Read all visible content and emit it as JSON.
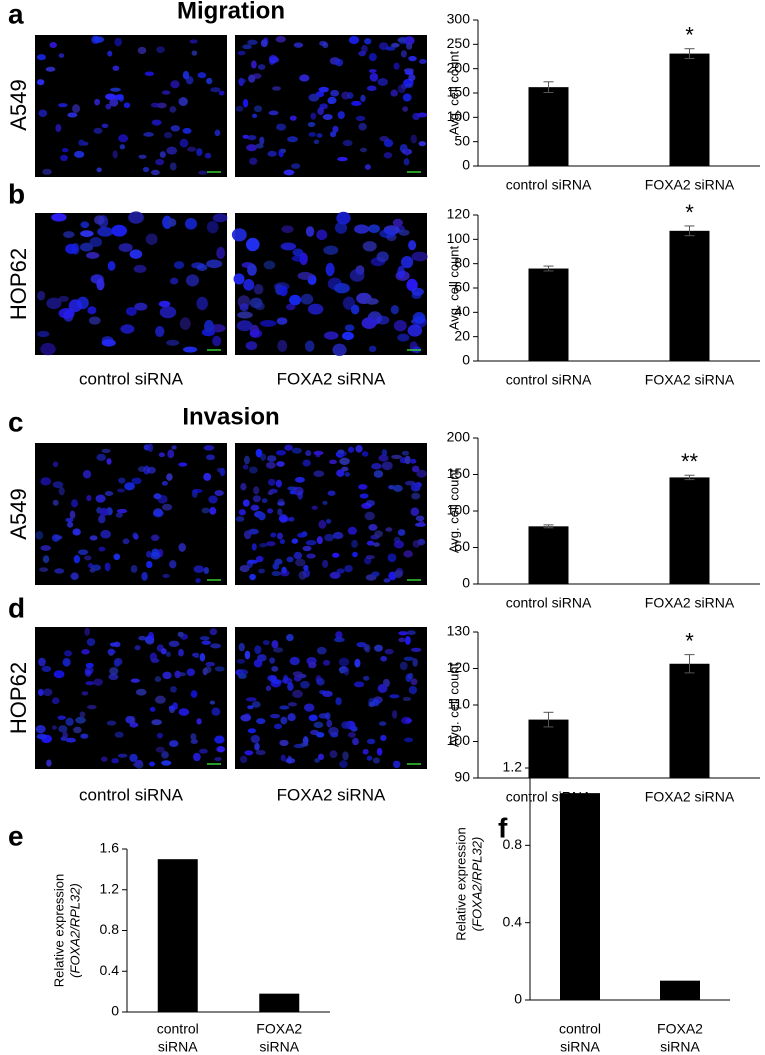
{
  "figure": {
    "panels": [
      "a",
      "b",
      "c",
      "d",
      "e",
      "f"
    ],
    "sections": [
      "Migration",
      "Invasion"
    ],
    "cell_lines": [
      "A549",
      "HOP62",
      "A549",
      "HOP62"
    ],
    "image_captions": [
      [
        "control siRNA",
        "FOXA2 siRNA"
      ],
      [
        "control siRNA",
        "FOXA2 siRNA"
      ]
    ]
  },
  "chart_data": [
    {
      "type": "bar",
      "ylabel": [
        "Avg. cell count"
      ],
      "categories": [
        "control siRNA",
        "FOXA2 siRNA"
      ],
      "values": [
        162,
        231
      ],
      "errors": [
        11,
        10
      ],
      "significance": [
        null,
        "*"
      ],
      "color": "#000000",
      "ylim": [
        0,
        300
      ],
      "yticks": [
        0,
        50,
        100,
        150,
        200,
        250,
        300
      ]
    },
    {
      "type": "bar",
      "ylabel": [
        "Avg. cell count"
      ],
      "categories": [
        "control siRNA",
        "FOXA2 siRNA"
      ],
      "values": [
        76,
        107
      ],
      "errors": [
        2,
        4
      ],
      "significance": [
        null,
        "*"
      ],
      "color": "#000000",
      "ylim": [
        0,
        120
      ],
      "yticks": [
        0,
        20,
        40,
        60,
        80,
        100,
        120
      ]
    },
    {
      "type": "bar",
      "ylabel": [
        "Avg. cell count"
      ],
      "categories": [
        "control siRNA",
        "FOXA2 siRNA"
      ],
      "values": [
        79,
        146
      ],
      "errors": [
        2,
        3
      ],
      "significance": [
        null,
        "**"
      ],
      "color": "#000000",
      "ylim": [
        0,
        200
      ],
      "yticks": [
        0,
        50,
        100,
        150,
        200
      ]
    },
    {
      "type": "bar",
      "ylabel": [
        "Avg. cell count"
      ],
      "categories": [
        "control siRNA",
        "FOXA2 siRNA"
      ],
      "values": [
        106,
        121.3
      ],
      "errors": [
        2,
        2.5
      ],
      "significance": [
        null,
        "*"
      ],
      "color": "#000000",
      "ylim": [
        90,
        130
      ],
      "yticks": [
        90,
        100,
        110,
        120,
        130
      ]
    },
    {
      "type": "bar",
      "ylabel": [
        "Relative expression",
        "(FOXA2/RPL32)"
      ],
      "categories": [
        [
          "control",
          "siRNA"
        ],
        [
          "FOXA2",
          "siRNA"
        ]
      ],
      "values": [
        1.5,
        0.18
      ],
      "color": "#000000",
      "ylim": [
        0,
        1.6
      ],
      "yticks": [
        0,
        0.4,
        0.8,
        1.2,
        1.6
      ]
    },
    {
      "type": "bar",
      "ylabel": [
        "Relative expression",
        "(FOXA2/RPL32)"
      ],
      "categories": [
        [
          "control",
          "siRNA"
        ],
        [
          "FOXA2",
          "siRNA"
        ]
      ],
      "values": [
        1.07,
        0.1
      ],
      "color": "#000000",
      "ylim": [
        0,
        1.2
      ],
      "yticks": [
        0,
        0.4,
        0.8,
        1.2
      ]
    }
  ]
}
